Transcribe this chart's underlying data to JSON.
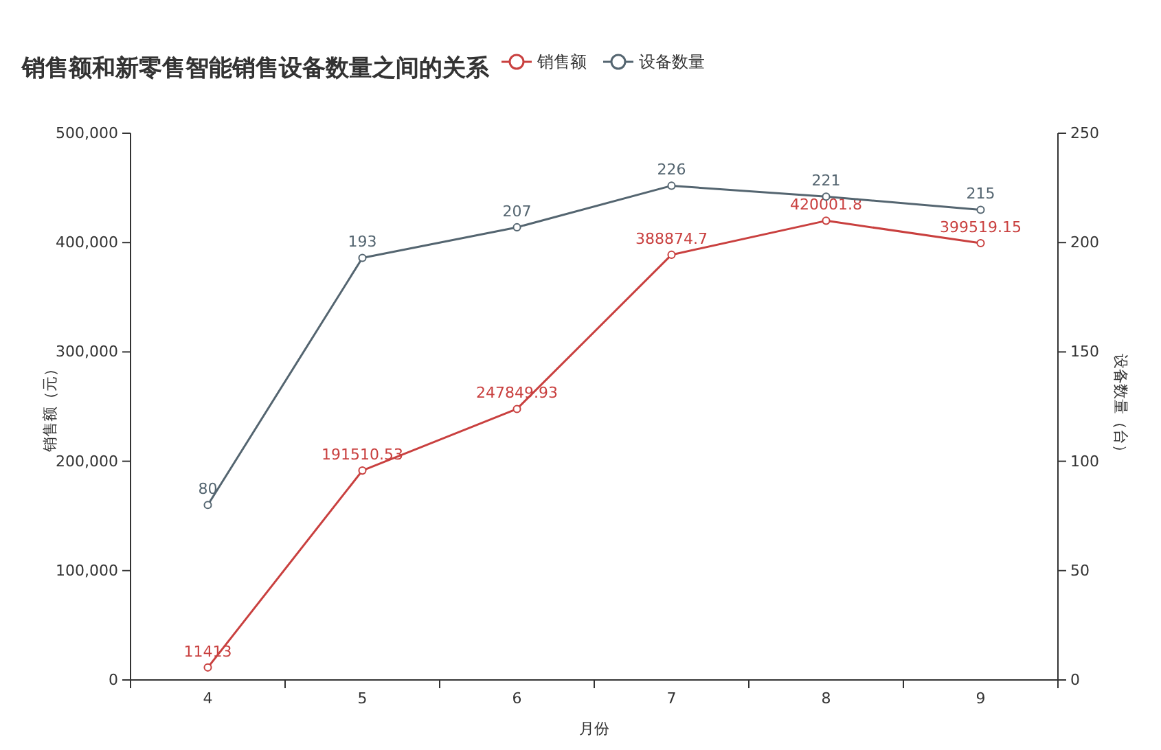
{
  "chart_data": {
    "type": "line",
    "title": "销售额和新零售智能销售设备数量之间的关系",
    "xlabel": "月份",
    "ylabel": "销售额（元）",
    "y2label": "设备数量（台）",
    "categories": [
      "4",
      "5",
      "6",
      "7",
      "8",
      "9"
    ],
    "series": [
      {
        "name": "销售额",
        "color": "#c9403f",
        "values": [
          11413,
          191510.53,
          247849.93,
          388874.7,
          420001.8,
          399519.15
        ]
      },
      {
        "name": "设备数量",
        "color": "#546570",
        "axis": "y2",
        "values": [
          80,
          193,
          207,
          226,
          221,
          215
        ]
      }
    ],
    "ylim": [
      0,
      500000
    ],
    "yticks": [
      0,
      {
        "value": 100000,
        "label": "100,000"
      },
      {
        "value": 200000,
        "label": "200,000"
      },
      {
        "value": 300000,
        "label": "300,000"
      },
      {
        "value": 400000,
        "label": "400,000"
      },
      {
        "value": 500000,
        "label": "500,000"
      }
    ],
    "y2lim": [
      0,
      250
    ],
    "y2ticks": [
      0,
      50,
      100,
      150,
      200,
      250
    ],
    "data_labels": true,
    "legend": "top",
    "marker": "circle",
    "line_style": "solid",
    "grid": false
  }
}
